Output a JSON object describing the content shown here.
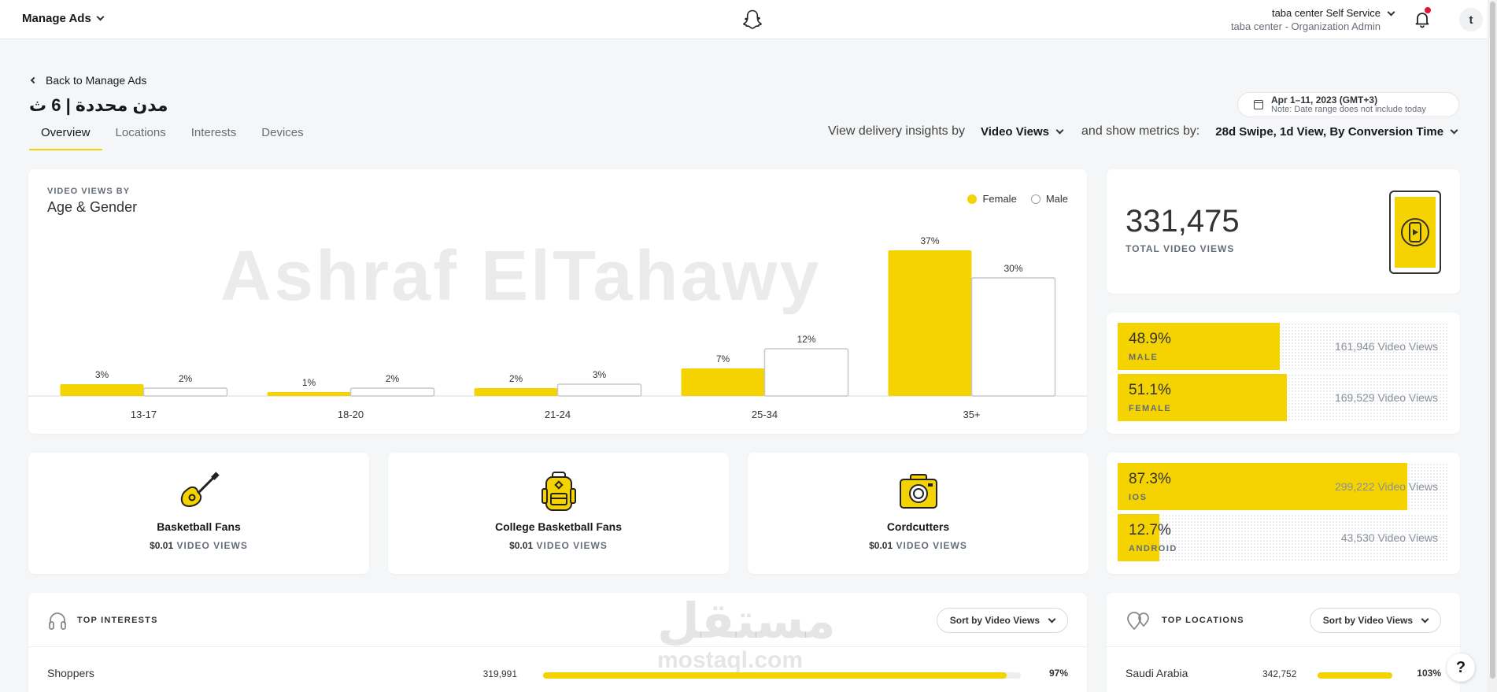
{
  "topbar": {
    "app_menu": "Manage Ads",
    "account_name": "taba center Self Service",
    "account_role": "taba center - Organization Admin",
    "avatar_letter": "t"
  },
  "header": {
    "back": "Back to Manage Ads",
    "title": "مدن محددة | 6 ث",
    "tabs": [
      "Overview",
      "Locations",
      "Interests",
      "Devices"
    ],
    "date_range": "Apr 1–11, 2023 (GMT+3)",
    "date_note": "Note: Date range does not include today",
    "delivery_label": "View delivery insights by",
    "delivery_value": "Video Views",
    "metrics_label": "and show metrics by:",
    "metrics_value": "28d Swipe, 1d View, By Conversion Time"
  },
  "chart_card": {
    "caption": "VIDEO VIEWS BY",
    "title": "Age & Gender",
    "legend_female": "Female",
    "legend_male": "Male"
  },
  "chart_data": {
    "type": "bar",
    "categories": [
      "13-17",
      "18-20",
      "21-24",
      "25-34",
      "35+"
    ],
    "series": [
      {
        "name": "Female",
        "values": [
          3,
          1,
          2,
          7,
          37
        ]
      },
      {
        "name": "Male",
        "values": [
          2,
          2,
          3,
          12,
          30
        ]
      }
    ],
    "data_labels": {
      "Female": [
        "3%",
        "1%",
        "2%",
        "7%",
        "37%"
      ],
      "Male": [
        "2%",
        "2%",
        "3%",
        "12%",
        "30%"
      ]
    },
    "ylim": [
      0,
      40
    ],
    "colors": {
      "Female": "#f5d300",
      "Male": "#ffffff"
    },
    "legend": "top-right"
  },
  "watermark": "Ashraf ElTahawy",
  "total": {
    "value": "331,475",
    "label": "TOTAL VIDEO VIEWS"
  },
  "gender_split": [
    {
      "pct": "48.9%",
      "name": "MALE",
      "views": "161,946 Video Views",
      "fraction": 0.489
    },
    {
      "pct": "51.1%",
      "name": "FEMALE",
      "views": "169,529 Video Views",
      "fraction": 0.511
    }
  ],
  "os_split": [
    {
      "pct": "87.3%",
      "name": "IOS",
      "views": "299,222 Video Views",
      "fraction": 0.873
    },
    {
      "pct": "12.7%",
      "name": "ANDROID",
      "views": "43,530 Video Views",
      "fraction": 0.127
    }
  ],
  "interest_cards": [
    {
      "name": "Basketball Fans",
      "price": "$0.01",
      "unit": "VIDEO VIEWS",
      "icon": "guitar-icon"
    },
    {
      "name": "College Basketball Fans",
      "price": "$0.01",
      "unit": "VIDEO VIEWS",
      "icon": "backpack-icon"
    },
    {
      "name": "Cordcutters",
      "price": "$0.01",
      "unit": "VIDEO VIEWS",
      "icon": "camera-icon"
    }
  ],
  "top_interests": {
    "title": "TOP INTERESTS",
    "sort": "Sort by Video Views",
    "rows": [
      {
        "name": "Shoppers",
        "count": "319,991",
        "pct": "97%",
        "fraction": 0.97
      }
    ]
  },
  "top_locations": {
    "title": "TOP LOCATIONS",
    "sort": "Sort by Video Views",
    "rows": [
      {
        "name": "Saudi Arabia",
        "count": "342,752",
        "pct": "103%",
        "fraction": 1.0
      }
    ]
  },
  "mostaql_ar": "مستقل",
  "mostaql_en": "mostaql.com",
  "colors": {
    "accent": "#f5d300",
    "text": "#16191c",
    "muted": "#656d78"
  }
}
